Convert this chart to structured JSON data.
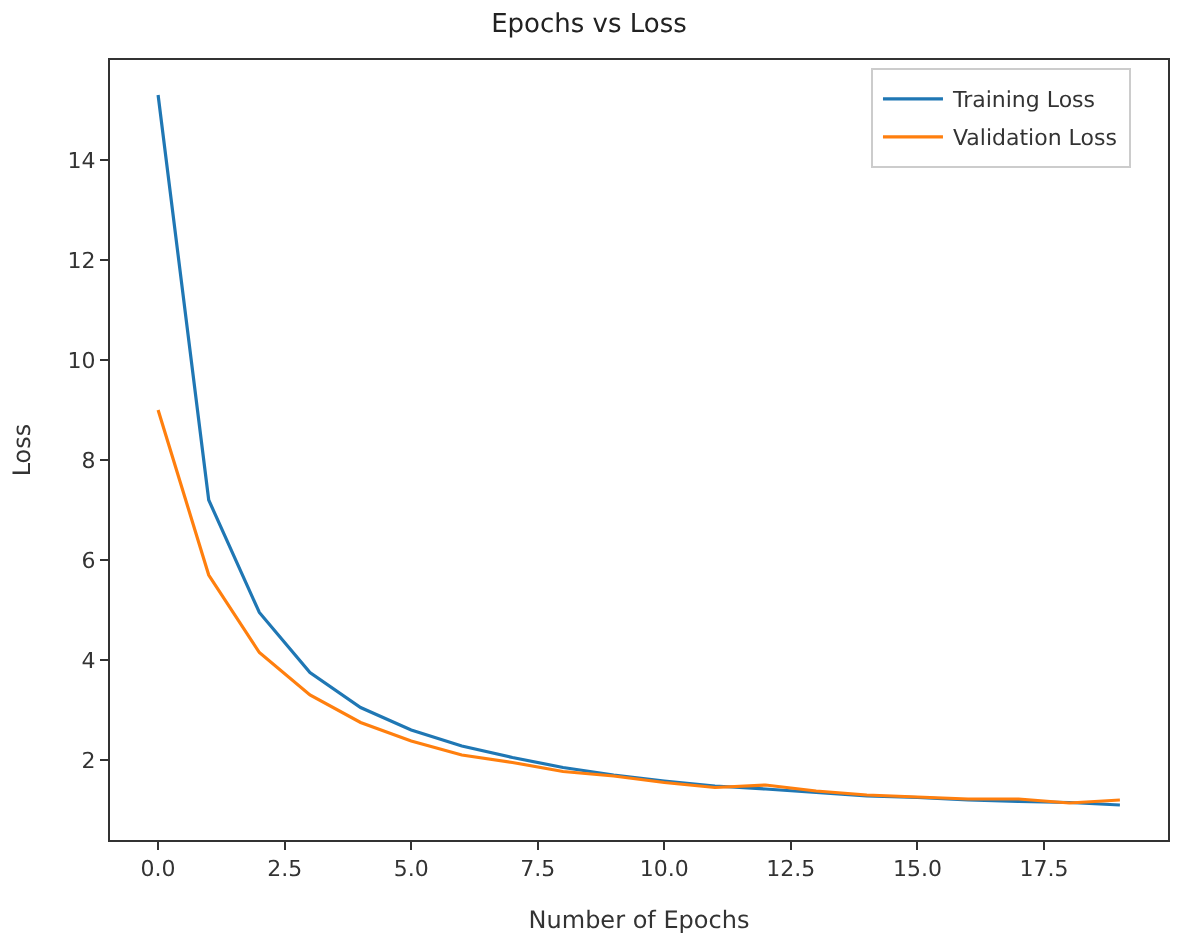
{
  "chart_data": {
    "type": "line",
    "title": "Epochs vs Loss",
    "xlabel": "Number of Epochs",
    "ylabel": "Loss",
    "x": [
      0,
      1,
      2,
      3,
      4,
      5,
      6,
      7,
      8,
      9,
      10,
      11,
      12,
      13,
      14,
      15,
      16,
      17,
      18,
      19
    ],
    "series": [
      {
        "name": "Training Loss",
        "color": "#1f77b4",
        "values": [
          15.3,
          7.2,
          4.95,
          3.75,
          3.05,
          2.6,
          2.28,
          2.05,
          1.85,
          1.7,
          1.58,
          1.48,
          1.42,
          1.35,
          1.28,
          1.25,
          1.2,
          1.17,
          1.15,
          1.1
        ]
      },
      {
        "name": "Validation Loss",
        "color": "#ff7f0e",
        "values": [
          9.0,
          5.7,
          4.15,
          3.3,
          2.75,
          2.38,
          2.1,
          1.95,
          1.77,
          1.68,
          1.55,
          1.45,
          1.5,
          1.38,
          1.3,
          1.26,
          1.22,
          1.22,
          1.14,
          1.2
        ]
      }
    ],
    "xlim": [
      -0.95,
      19.95
    ],
    "xticks": [
      {
        "value": 0,
        "label": "0.0"
      },
      {
        "value": 2.5,
        "label": "2.5"
      },
      {
        "value": 5,
        "label": "5.0"
      },
      {
        "value": 7.5,
        "label": "7.5"
      },
      {
        "value": 10,
        "label": "10.0"
      },
      {
        "value": 12.5,
        "label": "12.5"
      },
      {
        "value": 15,
        "label": "15.0"
      },
      {
        "value": 17.5,
        "label": "17.5"
      }
    ],
    "ylim": [
      0.4,
      16.0
    ],
    "yticks": [
      2,
      4,
      6,
      8,
      10,
      12,
      14
    ],
    "legend": "top right",
    "marker": "none",
    "line_style": "solid"
  }
}
